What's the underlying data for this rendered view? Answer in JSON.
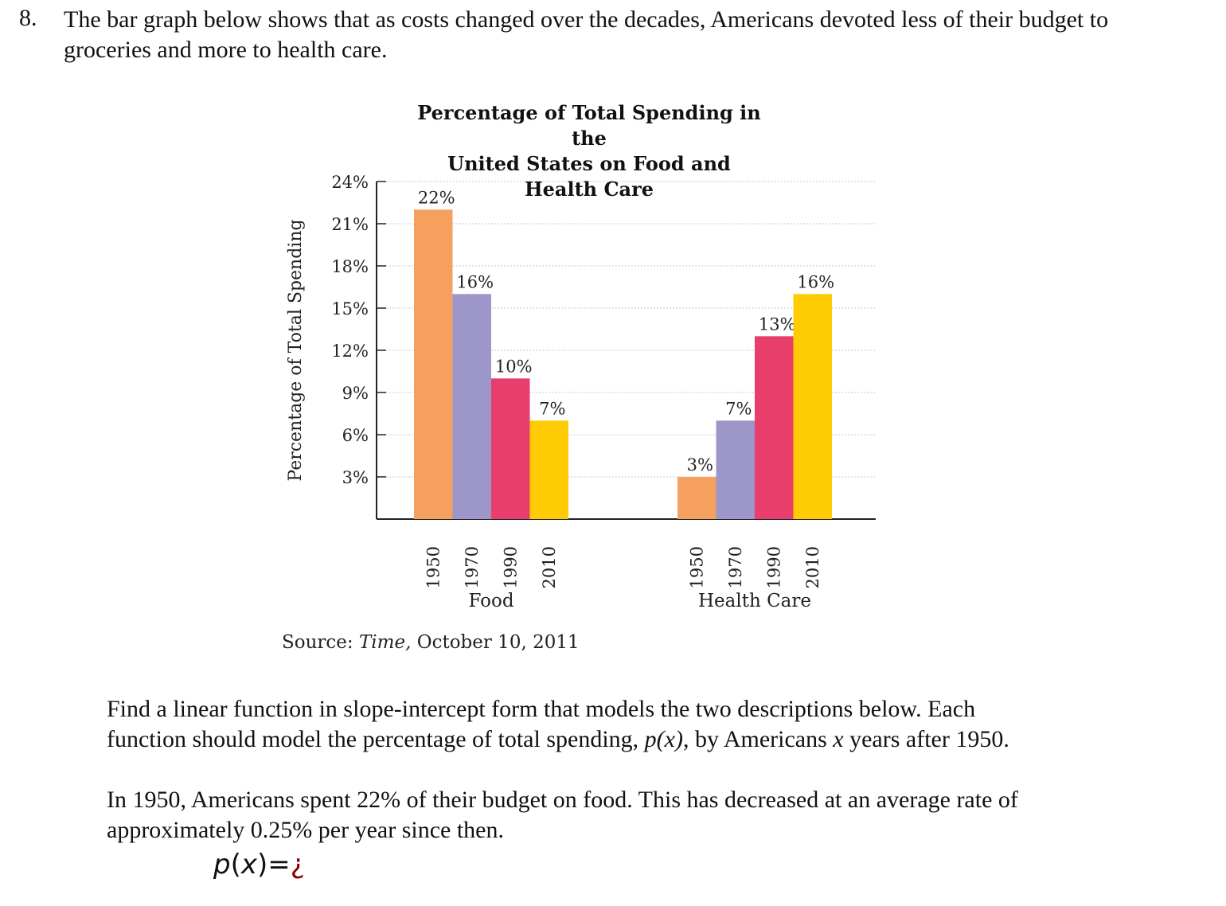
{
  "question": {
    "number": "8.",
    "text": "The bar graph below shows that as costs changed over the decades, Americans devoted less of their budget to groceries and more to health care."
  },
  "chart_data": {
    "type": "bar",
    "title_line1": "Percentage of Total Spending in the",
    "title_line2": "United States on Food and Health Care",
    "ylabel": "Percentage of Total Spending",
    "ylim": [
      0,
      24
    ],
    "yticks": [
      "24%",
      "21%",
      "18%",
      "15%",
      "12%",
      "9%",
      "6%",
      "3%"
    ],
    "ytick_values": [
      24,
      21,
      18,
      15,
      12,
      9,
      6,
      3
    ],
    "groups": [
      {
        "name": "Food",
        "years": [
          "1950",
          "1970",
          "1990",
          "2010"
        ],
        "values": [
          22,
          16,
          10,
          7
        ],
        "labels": [
          "22%",
          "16%",
          "10%",
          "7%"
        ]
      },
      {
        "name": "Health Care",
        "years": [
          "1950",
          "1970",
          "1990",
          "2010"
        ],
        "values": [
          3,
          7,
          13,
          16
        ],
        "labels": [
          "3%",
          "7%",
          "13%",
          "16%"
        ]
      }
    ],
    "colors": [
      "#f5a05f",
      "#9c96c9",
      "#e83e6c",
      "#ffcb05"
    ],
    "source_prefix": "Source: ",
    "source_title": "Time,",
    "source_date": " October 10, 2011"
  },
  "instructions": {
    "line1": "Find a linear function in slope-intercept form that models the two descriptions below. Each",
    "line2_a": "function should model the percentage of total spending, ",
    "line2_px": "p(x)",
    "line2_b": ", by Americans ",
    "line2_x": "x",
    "line2_c": " years after 1950."
  },
  "description": {
    "line1": "In 1950, Americans spent 22% of their budget on food. This has decreased at an average rate of",
    "line2": "approximately 0.25% per year since then."
  },
  "formula": {
    "p": "p",
    "open": "(",
    "x": "x",
    "close": ")",
    "eq": "=",
    "answer": "¿"
  }
}
